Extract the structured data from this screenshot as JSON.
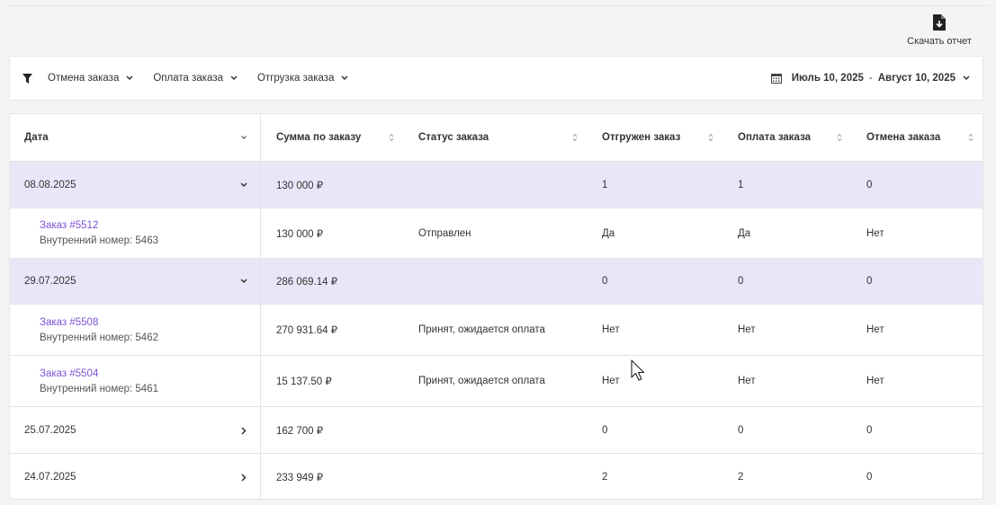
{
  "header": {
    "download_label": "Скачать отчет"
  },
  "filters": {
    "items": [
      "Отмена заказа",
      "Оплата заказа",
      "Отгрузка заказа"
    ],
    "date_from": "Июль 10, 2025",
    "date_sep": "-",
    "date_to": "Август 10, 2025"
  },
  "table": {
    "columns": [
      "Дата",
      "Сумма по заказу",
      "Статус заказа",
      "Отгружен заказ",
      "Оплата заказа",
      "Отмена заказа"
    ],
    "rows": [
      {
        "date": "08.08.2025",
        "sum": "130 000 ₽",
        "status": "",
        "shipped": "1",
        "paid": "1",
        "cancelled": "0"
      },
      {
        "order": "Заказ #5512",
        "internal": "Внутренний номер: 5463",
        "sum": "130 000 ₽",
        "status": "Отправлен",
        "shipped": "Да",
        "paid": "Да",
        "cancelled": "Нет"
      },
      {
        "date": "29.07.2025",
        "sum": "286 069.14 ₽",
        "status": "",
        "shipped": "0",
        "paid": "0",
        "cancelled": "0"
      },
      {
        "order": "Заказ #5508",
        "internal": "Внутренний номер: 5462",
        "sum": "270 931.64 ₽",
        "status": "Принят, ожидается оплата",
        "shipped": "Нет",
        "paid": "Нет",
        "cancelled": "Нет"
      },
      {
        "order": "Заказ #5504",
        "internal": "Внутренний номер: 5461",
        "sum": "15 137.50 ₽",
        "status": "Принят, ожидается оплата",
        "shipped": "Нет",
        "paid": "Нет",
        "cancelled": "Нет"
      },
      {
        "date": "25.07.2025",
        "sum": "162 700 ₽",
        "status": "",
        "shipped": "0",
        "paid": "0",
        "cancelled": "0"
      },
      {
        "date": "24.07.2025",
        "sum": "233 949 ₽",
        "status": "",
        "shipped": "2",
        "paid": "2",
        "cancelled": "0"
      }
    ]
  },
  "colors": {
    "accent": "#7b52d6",
    "group_row": "#ebe6f7"
  }
}
